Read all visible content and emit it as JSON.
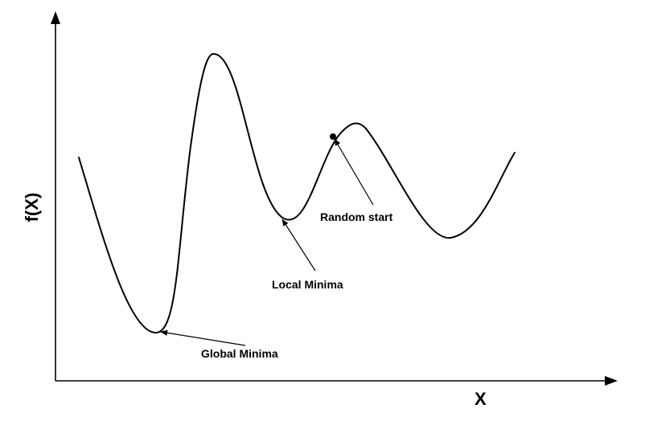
{
  "axes": {
    "x_label": "X",
    "y_label": "f(X)"
  },
  "annotations": {
    "global_minima": "Global Minima",
    "local_minima": "Local Minima",
    "random_start": "Random start"
  }
}
